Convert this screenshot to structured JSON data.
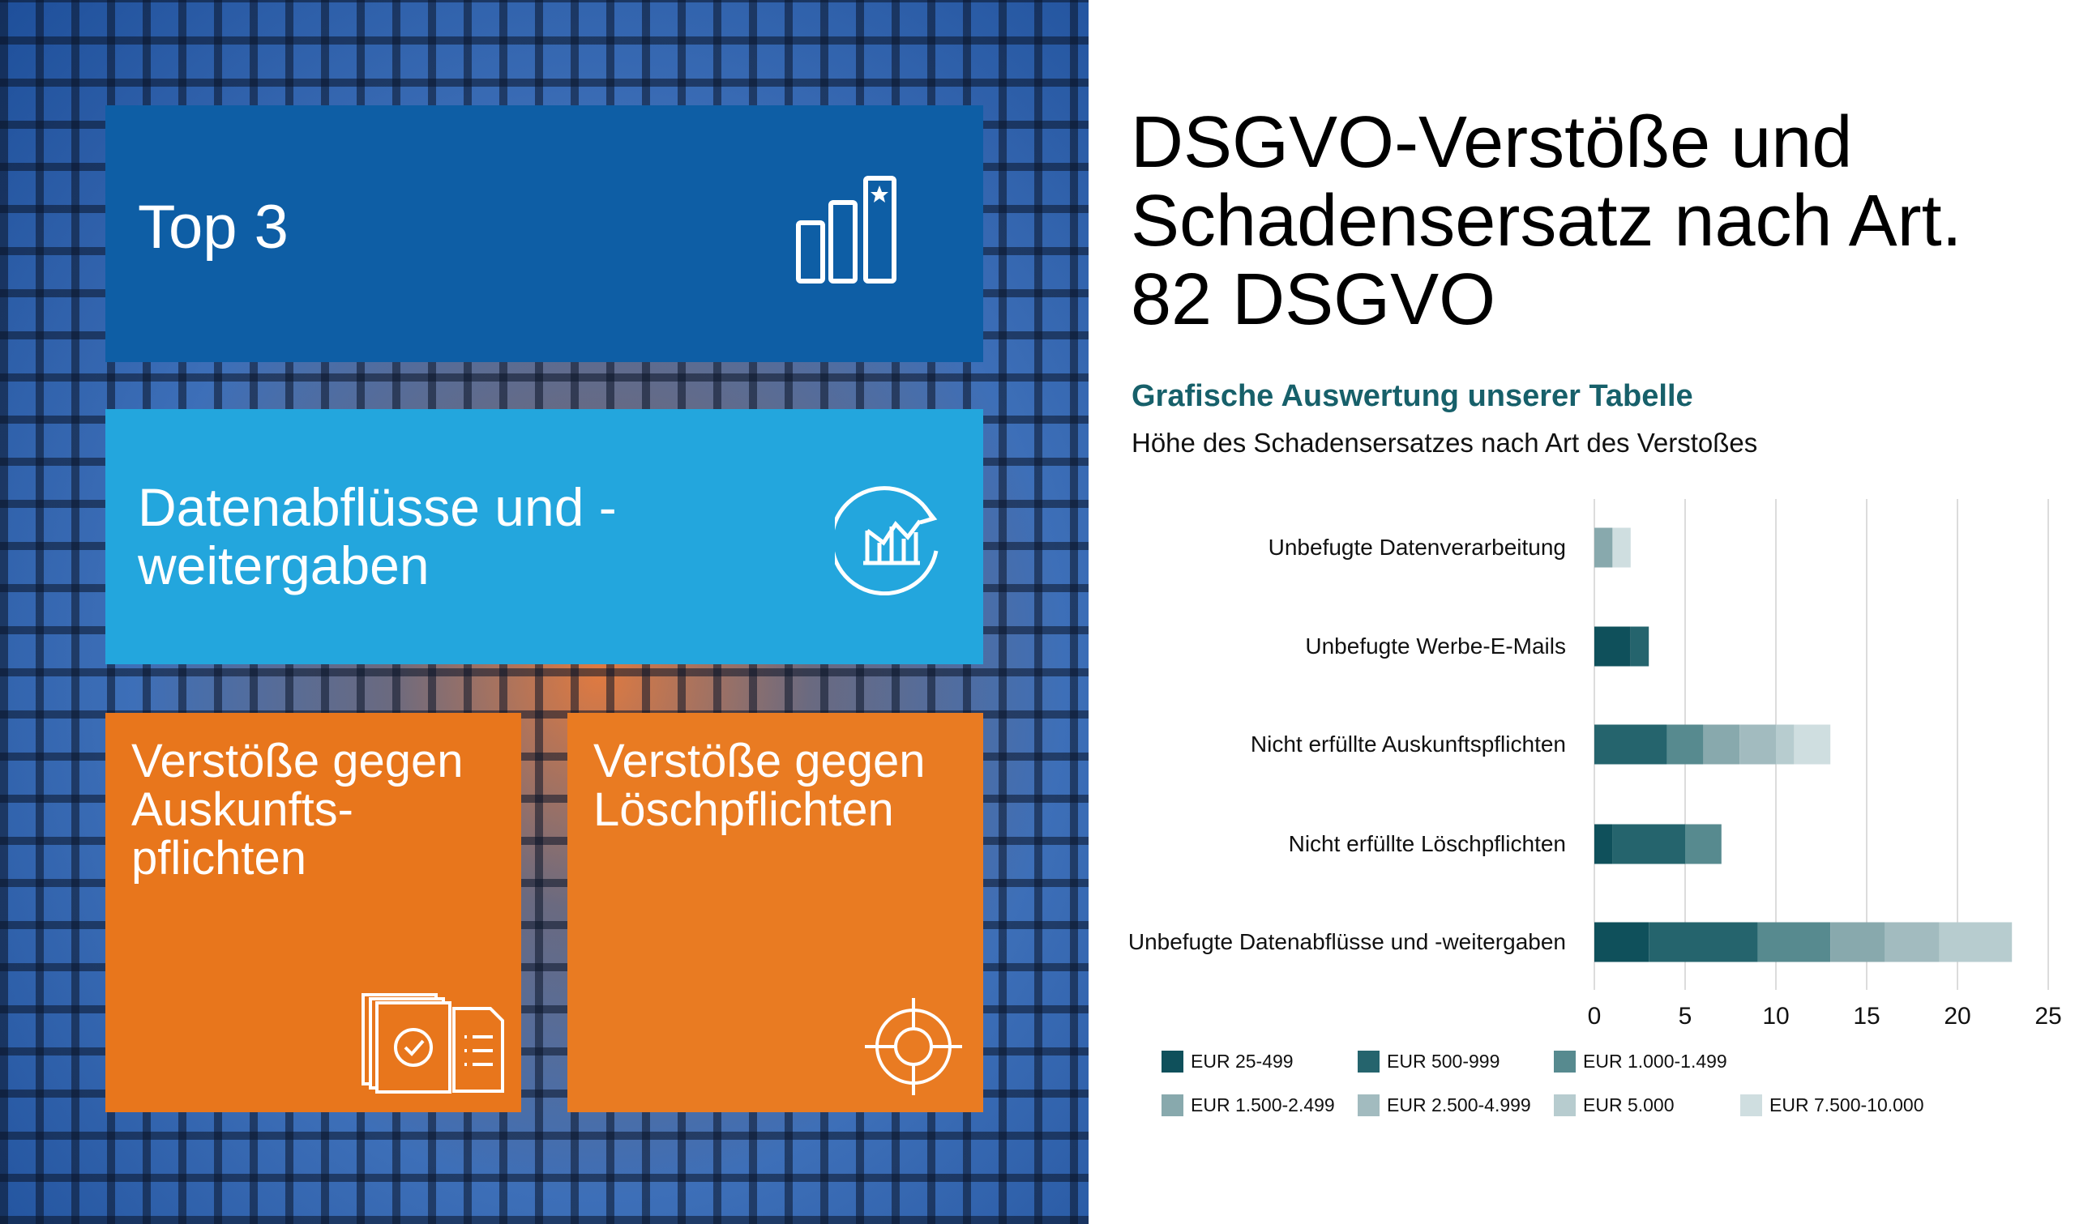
{
  "tiles": {
    "top": "Top 3",
    "t2": "Datenabflüsse und -weitergaben",
    "t3": "Verstöße gegen Auskunfts-pflichten",
    "t4": "Verstöße gegen Löschpflichten",
    "icons": [
      "bar-chart-star-icon",
      "chart-refresh-icon",
      "documents-check-icon",
      "target-icon"
    ]
  },
  "title": "DSGVO-Verstöße und Schadensersatz nach Art. 82 DSGVO",
  "subtitle": "Grafische Auswertung unserer Tabelle",
  "subtitle2": "Höhe des Schadensersatzes nach Art des Verstoßes",
  "chart_data": {
    "type": "bar",
    "orientation": "horizontal",
    "stacked": true,
    "categories": [
      "Unbefugte Datenverarbeitung",
      "Unbefugte Werbe-E-Mails",
      "Nicht erfüllte Auskunftspflichten",
      "Nicht erfüllte Löschpflichten",
      "Unbefugte Datenabflüsse und -weitergaben"
    ],
    "xlim": [
      0,
      25
    ],
    "xticks": [
      "0",
      "5",
      "10",
      "15",
      "20",
      "25"
    ],
    "grid": true,
    "legend": "bottom",
    "series": [
      {
        "name": "EUR 25-499",
        "color": "#0f505b",
        "values": [
          0,
          2,
          0,
          1,
          3
        ]
      },
      {
        "name": "EUR 500-999",
        "color": "#25646d",
        "values": [
          0,
          1,
          4,
          4,
          6
        ]
      },
      {
        "name": "EUR 1.000-1.499",
        "color": "#578a8f",
        "values": [
          0,
          0,
          2,
          2,
          4
        ]
      },
      {
        "name": "EUR 1.500-2.499",
        "color": "#88a9ad",
        "values": [
          1,
          0,
          2,
          0,
          3
        ]
      },
      {
        "name": "EUR 2.500-4.999",
        "color": "#a2bbbf",
        "values": [
          0,
          0,
          2,
          0,
          3
        ]
      },
      {
        "name": "EUR 5.000",
        "color": "#b7cccf",
        "values": [
          0,
          0,
          1,
          0,
          4
        ]
      },
      {
        "name": "EUR 7.500-10.000",
        "color": "#cfdee0",
        "values": [
          1,
          0,
          2,
          0,
          0
        ]
      }
    ]
  }
}
